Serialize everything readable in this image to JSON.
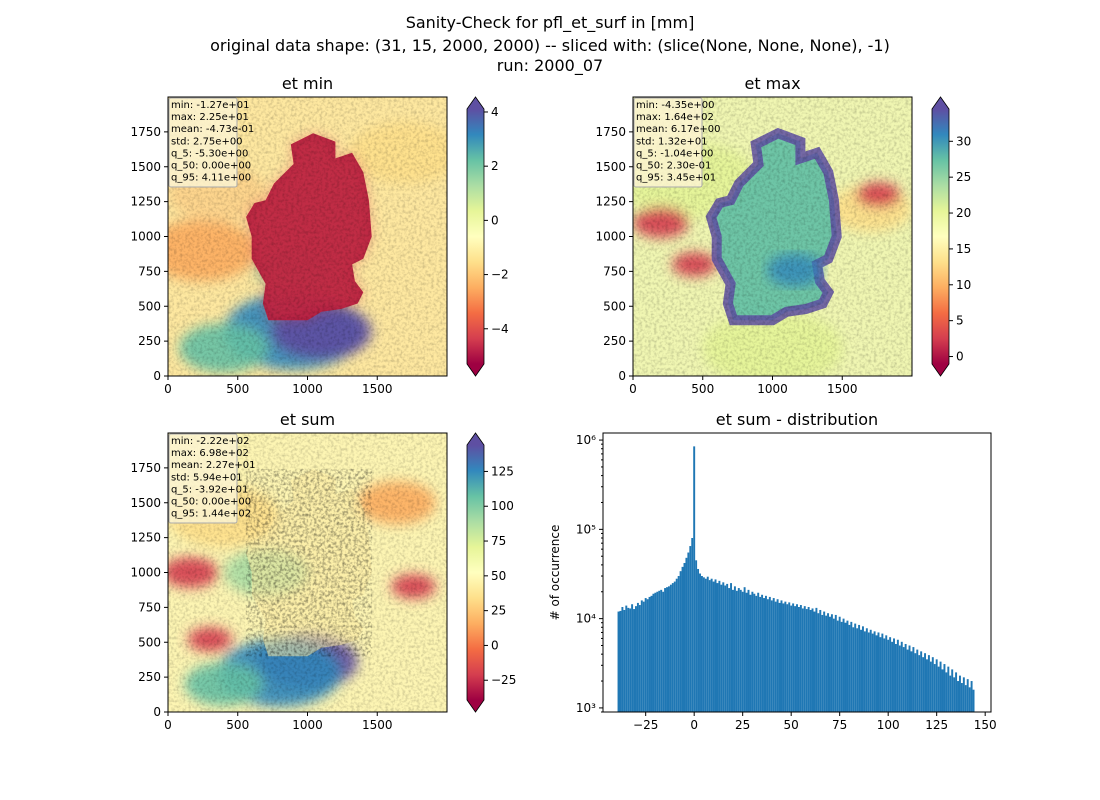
{
  "figure": {
    "title_line1": "Sanity-Check for pfl_et_surf in [mm]",
    "title_line2": "original data shape: (31, 15, 2000, 2000) -- sliced with: (slice(None, None, None), -1)",
    "title_line3": "run: 2000_07"
  },
  "panels": [
    {
      "title": "et min",
      "stats": [
        "min: -1.27e+01",
        "max: 2.25e+01",
        "mean: -4.73e-01",
        "std: 2.75e+00",
        "q_5: -5.30e+00",
        "q_50: 0.00e+00",
        "q_95: 4.11e+00"
      ],
      "colorbar_ticks": [
        "4",
        "2",
        "0",
        "−2",
        "−4"
      ]
    },
    {
      "title": "et max",
      "stats": [
        "min: -4.35e+00",
        "max: 1.64e+02",
        "mean: 6.17e+00",
        "std: 1.32e+01",
        "q_5: -1.04e+00",
        "q_50: 2.30e-01",
        "q_95: 3.45e+01"
      ],
      "colorbar_ticks": [
        "30",
        "25",
        "20",
        "15",
        "10",
        "5",
        "0"
      ]
    },
    {
      "title": "et sum",
      "stats": [
        "min: -2.22e+02",
        "max: 6.98e+02",
        "mean: 2.27e+01",
        "std: 5.94e+01",
        "q_5: -3.92e+01",
        "q_50: 0.00e+00",
        "q_95: 1.44e+02"
      ],
      "colorbar_ticks": [
        "125",
        "100",
        "75",
        "50",
        "25",
        "0",
        "−25"
      ]
    }
  ],
  "map_axis": {
    "x_ticks": [
      "0",
      "500",
      "1000",
      "1500"
    ],
    "y_ticks": [
      "0",
      "250",
      "500",
      "750",
      "1000",
      "1250",
      "1500",
      "1750"
    ]
  },
  "colors": {
    "bar": "#1f77b4",
    "spectral": [
      "#9e0142",
      "#d53e4f",
      "#f46d43",
      "#fdae61",
      "#fee08b",
      "#ffffbf",
      "#e6f598",
      "#abdda4",
      "#66c2a5",
      "#3288bd",
      "#5e4fa2"
    ]
  },
  "chart_data": [
    {
      "type": "heatmap",
      "title": "et min",
      "xlim": [
        0,
        2000
      ],
      "ylim": [
        0,
        2000
      ],
      "colorbar_range": [
        -5.3,
        4.11
      ],
      "colorbar_ticks": [
        4,
        2,
        0,
        -2,
        -4
      ]
    },
    {
      "type": "heatmap",
      "title": "et max",
      "xlim": [
        0,
        2000
      ],
      "ylim": [
        0,
        2000
      ],
      "colorbar_range": [
        -1.04,
        34.5
      ],
      "colorbar_ticks": [
        30,
        25,
        20,
        15,
        10,
        5,
        0
      ]
    },
    {
      "type": "heatmap",
      "title": "et sum",
      "xlim": [
        0,
        2000
      ],
      "ylim": [
        0,
        2000
      ],
      "colorbar_range": [
        -39.2,
        144
      ],
      "colorbar_ticks": [
        125,
        100,
        75,
        50,
        25,
        0,
        -25
      ]
    },
    {
      "type": "bar",
      "title": "et sum - distribution",
      "xlabel": "",
      "ylabel": "# of occurrence",
      "yscale": "log",
      "xlim": [
        -47,
        153
      ],
      "ylim": [
        900,
        1200000
      ],
      "x_ticks": [
        -25,
        0,
        25,
        50,
        75,
        100,
        125,
        150
      ],
      "x_tick_labels": [
        "−25",
        "0",
        "25",
        "50",
        "75",
        "100",
        "125",
        "150"
      ],
      "y_ticks": [
        1000,
        10000,
        100000,
        1000000
      ],
      "y_tick_labels": [
        "10³",
        "10⁴",
        "10⁵",
        "10⁶"
      ],
      "bin_width": 1,
      "bins": [
        {
          "x": -39,
          "y": 12000
        },
        {
          "x": -38,
          "y": 12200
        },
        {
          "x": -37,
          "y": 13500
        },
        {
          "x": -36,
          "y": 12500
        },
        {
          "x": -35,
          "y": 14000
        },
        {
          "x": -34,
          "y": 13200
        },
        {
          "x": -33,
          "y": 13000
        },
        {
          "x": -32,
          "y": 14500
        },
        {
          "x": -31,
          "y": 12800
        },
        {
          "x": -30,
          "y": 13800
        },
        {
          "x": -29,
          "y": 15000
        },
        {
          "x": -28,
          "y": 14200
        },
        {
          "x": -27,
          "y": 16000
        },
        {
          "x": -26,
          "y": 15500
        },
        {
          "x": -25,
          "y": 17000
        },
        {
          "x": -24,
          "y": 16500
        },
        {
          "x": -23,
          "y": 17500
        },
        {
          "x": -22,
          "y": 18000
        },
        {
          "x": -21,
          "y": 19000
        },
        {
          "x": -20,
          "y": 19500
        },
        {
          "x": -19,
          "y": 20000
        },
        {
          "x": -18,
          "y": 20500
        },
        {
          "x": -17,
          "y": 21000
        },
        {
          "x": -16,
          "y": 20000
        },
        {
          "x": -15,
          "y": 22000
        },
        {
          "x": -14,
          "y": 22500
        },
        {
          "x": -13,
          "y": 23000
        },
        {
          "x": -12,
          "y": 24000
        },
        {
          "x": -11,
          "y": 25000
        },
        {
          "x": -10,
          "y": 26000
        },
        {
          "x": -9,
          "y": 28000
        },
        {
          "x": -8,
          "y": 30000
        },
        {
          "x": -7,
          "y": 34000
        },
        {
          "x": -6,
          "y": 38000
        },
        {
          "x": -5,
          "y": 42000
        },
        {
          "x": -4,
          "y": 48000
        },
        {
          "x": -3,
          "y": 55000
        },
        {
          "x": -2,
          "y": 65000
        },
        {
          "x": -1,
          "y": 80000
        },
        {
          "x": 0,
          "y": 850000
        },
        {
          "x": 1,
          "y": 45000
        },
        {
          "x": 2,
          "y": 36000
        },
        {
          "x": 3,
          "y": 32000
        },
        {
          "x": 4,
          "y": 30000
        },
        {
          "x": 5,
          "y": 29000
        },
        {
          "x": 6,
          "y": 28000
        },
        {
          "x": 7,
          "y": 29500
        },
        {
          "x": 8,
          "y": 27000
        },
        {
          "x": 9,
          "y": 28000
        },
        {
          "x": 10,
          "y": 26000
        },
        {
          "x": 11,
          "y": 27500
        },
        {
          "x": 12,
          "y": 25000
        },
        {
          "x": 13,
          "y": 26500
        },
        {
          "x": 14,
          "y": 24000
        },
        {
          "x": 15,
          "y": 25500
        },
        {
          "x": 16,
          "y": 23500
        },
        {
          "x": 17,
          "y": 24500
        },
        {
          "x": 18,
          "y": 22000
        },
        {
          "x": 19,
          "y": 25000
        },
        {
          "x": 20,
          "y": 21000
        },
        {
          "x": 21,
          "y": 23000
        },
        {
          "x": 22,
          "y": 20500
        },
        {
          "x": 23,
          "y": 22000
        },
        {
          "x": 24,
          "y": 21000
        },
        {
          "x": 25,
          "y": 20000
        },
        {
          "x": 26,
          "y": 22500
        },
        {
          "x": 27,
          "y": 19500
        },
        {
          "x": 28,
          "y": 21000
        },
        {
          "x": 29,
          "y": 18500
        },
        {
          "x": 30,
          "y": 20000
        },
        {
          "x": 31,
          "y": 19000
        },
        {
          "x": 32,
          "y": 18000
        },
        {
          "x": 33,
          "y": 19500
        },
        {
          "x": 34,
          "y": 17500
        },
        {
          "x": 35,
          "y": 18500
        },
        {
          "x": 36,
          "y": 17000
        },
        {
          "x": 37,
          "y": 18000
        },
        {
          "x": 38,
          "y": 16500
        },
        {
          "x": 39,
          "y": 17500
        },
        {
          "x": 40,
          "y": 16000
        },
        {
          "x": 41,
          "y": 17000
        },
        {
          "x": 42,
          "y": 15500
        },
        {
          "x": 43,
          "y": 16500
        },
        {
          "x": 44,
          "y": 15000
        },
        {
          "x": 45,
          "y": 16000
        },
        {
          "x": 46,
          "y": 14800
        },
        {
          "x": 47,
          "y": 15500
        },
        {
          "x": 48,
          "y": 14500
        },
        {
          "x": 49,
          "y": 15200
        },
        {
          "x": 50,
          "y": 14000
        },
        {
          "x": 51,
          "y": 14800
        },
        {
          "x": 52,
          "y": 13800
        },
        {
          "x": 53,
          "y": 14500
        },
        {
          "x": 54,
          "y": 13500
        },
        {
          "x": 55,
          "y": 14200
        },
        {
          "x": 56,
          "y": 13000
        },
        {
          "x": 57,
          "y": 13800
        },
        {
          "x": 58,
          "y": 12800
        },
        {
          "x": 59,
          "y": 13500
        },
        {
          "x": 60,
          "y": 12500
        },
        {
          "x": 61,
          "y": 13000
        },
        {
          "x": 62,
          "y": 12000
        },
        {
          "x": 63,
          "y": 13200
        },
        {
          "x": 64,
          "y": 11500
        },
        {
          "x": 65,
          "y": 12500
        },
        {
          "x": 66,
          "y": 11000
        },
        {
          "x": 67,
          "y": 12000
        },
        {
          "x": 68,
          "y": 10800
        },
        {
          "x": 69,
          "y": 11500
        },
        {
          "x": 70,
          "y": 10500
        },
        {
          "x": 71,
          "y": 11200
        },
        {
          "x": 72,
          "y": 10000
        },
        {
          "x": 73,
          "y": 11000
        },
        {
          "x": 74,
          "y": 9500
        },
        {
          "x": 75,
          "y": 10500
        },
        {
          "x": 76,
          "y": 9200
        },
        {
          "x": 77,
          "y": 10000
        },
        {
          "x": 78,
          "y": 9000
        },
        {
          "x": 79,
          "y": 9500
        },
        {
          "x": 80,
          "y": 8500
        },
        {
          "x": 81,
          "y": 9200
        },
        {
          "x": 82,
          "y": 8000
        },
        {
          "x": 83,
          "y": 8800
        },
        {
          "x": 84,
          "y": 7800
        },
        {
          "x": 85,
          "y": 8500
        },
        {
          "x": 86,
          "y": 7500
        },
        {
          "x": 87,
          "y": 8200
        },
        {
          "x": 88,
          "y": 7200
        },
        {
          "x": 89,
          "y": 7800
        },
        {
          "x": 90,
          "y": 7000
        },
        {
          "x": 91,
          "y": 7500
        },
        {
          "x": 92,
          "y": 6800
        },
        {
          "x": 93,
          "y": 7200
        },
        {
          "x": 94,
          "y": 6500
        },
        {
          "x": 95,
          "y": 7000
        },
        {
          "x": 96,
          "y": 6200
        },
        {
          "x": 97,
          "y": 6800
        },
        {
          "x": 98,
          "y": 6000
        },
        {
          "x": 99,
          "y": 6500
        },
        {
          "x": 100,
          "y": 5800
        },
        {
          "x": 101,
          "y": 6200
        },
        {
          "x": 102,
          "y": 5500
        },
        {
          "x": 103,
          "y": 6000
        },
        {
          "x": 104,
          "y": 5200
        },
        {
          "x": 105,
          "y": 5800
        },
        {
          "x": 106,
          "y": 5000
        },
        {
          "x": 107,
          "y": 5500
        },
        {
          "x": 108,
          "y": 4800
        },
        {
          "x": 109,
          "y": 5200
        },
        {
          "x": 110,
          "y": 4500
        },
        {
          "x": 111,
          "y": 5000
        },
        {
          "x": 112,
          "y": 4300
        },
        {
          "x": 113,
          "y": 4800
        },
        {
          "x": 114,
          "y": 4100
        },
        {
          "x": 115,
          "y": 4500
        },
        {
          "x": 116,
          "y": 3900
        },
        {
          "x": 117,
          "y": 4300
        },
        {
          "x": 118,
          "y": 3700
        },
        {
          "x": 119,
          "y": 4100
        },
        {
          "x": 120,
          "y": 3500
        },
        {
          "x": 121,
          "y": 3900
        },
        {
          "x": 122,
          "y": 3300
        },
        {
          "x": 123,
          "y": 3700
        },
        {
          "x": 124,
          "y": 3100
        },
        {
          "x": 125,
          "y": 3500
        },
        {
          "x": 126,
          "y": 2900
        },
        {
          "x": 127,
          "y": 3300
        },
        {
          "x": 128,
          "y": 2700
        },
        {
          "x": 129,
          "y": 3100
        },
        {
          "x": 130,
          "y": 2500
        },
        {
          "x": 131,
          "y": 2900
        },
        {
          "x": 132,
          "y": 2300
        },
        {
          "x": 133,
          "y": 2700
        },
        {
          "x": 134,
          "y": 2200
        },
        {
          "x": 135,
          "y": 2500
        },
        {
          "x": 136,
          "y": 2000
        },
        {
          "x": 137,
          "y": 2300
        },
        {
          "x": 138,
          "y": 1900
        },
        {
          "x": 139,
          "y": 2200
        },
        {
          "x": 140,
          "y": 1800
        },
        {
          "x": 141,
          "y": 2100
        },
        {
          "x": 142,
          "y": 1700
        },
        {
          "x": 143,
          "y": 2000
        },
        {
          "x": 144,
          "y": 1600
        }
      ]
    }
  ]
}
